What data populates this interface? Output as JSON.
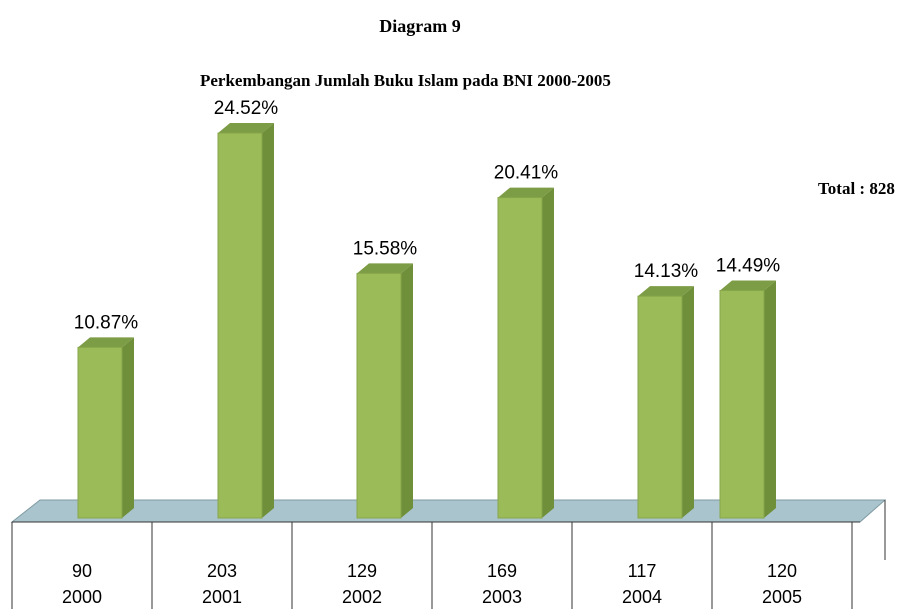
{
  "chart_data": {
    "type": "bar3d",
    "title": "Diagram 9",
    "subtitle": "Perkembangan Jumlah Buku Islam pada BNI 2000-2005",
    "annotation": "Total : 828",
    "categories": [
      "2000",
      "2001",
      "2002",
      "2003",
      "2004",
      "2005"
    ],
    "values": [
      10.87,
      24.52,
      15.58,
      20.41,
      14.13,
      14.49
    ],
    "value_labels": [
      "10.87%",
      "24.52%",
      "15.58%",
      "20.41%",
      "14.13%",
      "14.49%"
    ],
    "counts": [
      90,
      203,
      129,
      169,
      117,
      120
    ],
    "color": "#9bbb59"
  }
}
